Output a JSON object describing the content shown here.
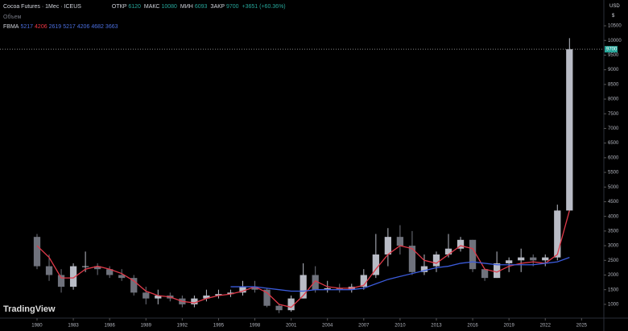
{
  "header": {
    "symbol": "Cocoa Futures · 1Мес · ICEUS",
    "open_label": "ОТКР",
    "open": 6120,
    "high_label": "МАКС",
    "high": 10080,
    "low_label": "МИН",
    "low": 6093,
    "close_label": "ЗАКР",
    "close": 9700,
    "change": "+3651 (+60.36%)",
    "volume_label": "Объем",
    "indicator": "FBMA",
    "indicator_values": [
      5217,
      4206,
      2619,
      5217,
      4206,
      4682,
      3663
    ],
    "currency": "USD",
    "currency_symbol": "$",
    "logo": "TradingView"
  },
  "chart_data": {
    "type": "candlestick",
    "x": [
      1980,
      1981,
      1982,
      1983,
      1984,
      1985,
      1986,
      1987,
      1988,
      1989,
      1990,
      1991,
      1992,
      1993,
      1994,
      1995,
      1996,
      1997,
      1998,
      1999,
      2000,
      2001,
      2002,
      2003,
      2004,
      2005,
      2006,
      2007,
      2008,
      2009,
      2010,
      2011,
      2012,
      2013,
      2014,
      2015,
      2016,
      2017,
      2018,
      2019,
      2020,
      2021,
      2022,
      2023,
      2024
    ],
    "open": [
      3300,
      2300,
      2000,
      1600,
      2300,
      2300,
      2200,
      2000,
      1900,
      1400,
      1200,
      1300,
      1200,
      1000,
      1200,
      1300,
      1350,
      1400,
      1600,
      1500,
      950,
      800,
      1200,
      2000,
      1500,
      1550,
      1500,
      1600,
      2000,
      2700,
      3300,
      3000,
      2100,
      2300,
      2700,
      2900,
      3200,
      2200,
      1900,
      2400,
      2500,
      2600,
      2500,
      2600,
      4200
    ],
    "high": [
      3400,
      2700,
      2200,
      2400,
      2800,
      2400,
      2300,
      2200,
      2000,
      1600,
      1500,
      1400,
      1300,
      1300,
      1500,
      1500,
      1500,
      1800,
      1800,
      1550,
      1000,
      1300,
      2400,
      2300,
      1800,
      1700,
      1700,
      2200,
      3400,
      3600,
      3700,
      3500,
      2700,
      2800,
      3400,
      3300,
      3200,
      2200,
      2800,
      2600,
      2900,
      2700,
      2700,
      4400,
      10080
    ],
    "low": [
      2200,
      1800,
      1400,
      1500,
      2100,
      2000,
      1900,
      1800,
      1300,
      1000,
      1000,
      1100,
      900,
      900,
      1100,
      1200,
      1250,
      1300,
      1400,
      900,
      700,
      750,
      1200,
      1400,
      1400,
      1400,
      1400,
      1500,
      1900,
      2300,
      2700,
      2000,
      2000,
      2100,
      2600,
      2800,
      2100,
      1800,
      1900,
      2100,
      2100,
      2300,
      2300,
      2500,
      4200
    ],
    "close": [
      2300,
      2000,
      1600,
      2300,
      2300,
      2200,
      2000,
      1900,
      1400,
      1200,
      1300,
      1200,
      1000,
      1200,
      1300,
      1350,
      1400,
      1600,
      1500,
      950,
      800,
      1200,
      2000,
      1500,
      1550,
      1500,
      1600,
      2000,
      2700,
      3300,
      3000,
      2100,
      2300,
      2700,
      2900,
      3200,
      2200,
      1900,
      2400,
      2500,
      2600,
      2500,
      2600,
      4200,
      9700
    ],
    "up_color": "#b9bcc6",
    "down_color": "#6f727c",
    "series": [
      {
        "color": "#e03a4a",
        "values": [
          3000,
          2600,
          1900,
          1900,
          2200,
          2300,
          2200,
          2050,
          1800,
          1450,
          1300,
          1250,
          1100,
          1050,
          1200,
          1300,
          1350,
          1450,
          1600,
          1400,
          1000,
          900,
          1300,
          1800,
          1600,
          1550,
          1550,
          1650,
          2200,
          2700,
          3000,
          2900,
          2500,
          2400,
          2700,
          3000,
          2900,
          2200,
          2100,
          2300,
          2400,
          2450,
          2400,
          2700,
          4200
        ]
      },
      {
        "color": "#3b5bdb",
        "values": [
          null,
          null,
          null,
          null,
          null,
          null,
          null,
          null,
          null,
          null,
          null,
          null,
          null,
          null,
          null,
          null,
          1600,
          1600,
          1600,
          1550,
          1500,
          1450,
          1450,
          1500,
          1500,
          1500,
          1500,
          1550,
          1700,
          1850,
          1950,
          2050,
          2150,
          2250,
          2300,
          2400,
          2450,
          2400,
          2350,
          2350,
          2350,
          2350,
          2400,
          2450,
          2600
        ]
      }
    ],
    "xlim": [
      1976.94,
      2026.84
    ],
    "xticks": [
      1980,
      1983,
      1986,
      1989,
      1992,
      1995,
      1998,
      2001,
      2004,
      2007,
      2010,
      2013,
      2016,
      2019,
      2022,
      2025
    ],
    "ylim": [
      530,
      11380
    ],
    "yticks": [
      1000,
      1500,
      2000,
      2500,
      3000,
      3500,
      4000,
      4500,
      5000,
      5500,
      6000,
      6500,
      7000,
      7500,
      8000,
      8500,
      9000,
      9500,
      10000,
      10500
    ]
  }
}
